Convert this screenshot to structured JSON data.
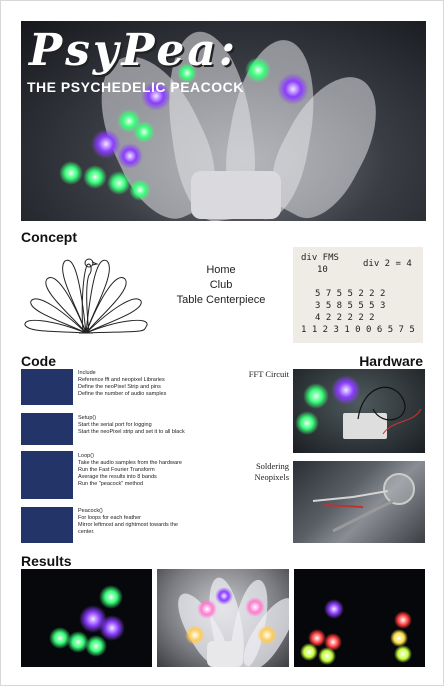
{
  "hero": {
    "title": "PsyPea:",
    "subtitle": "THE PSYCHEDELIC PEACOCK"
  },
  "concept": {
    "heading": "Concept",
    "lines": [
      "Home",
      "Club",
      "Table Centerpiece"
    ],
    "note_lines": [
      "div FMS",
      "10",
      "div 2 = 4",
      "5 7 5 5 2 2 2",
      "3 5 8 5 5 5 3",
      "4 2 2 2 2 2",
      "1 1 2 3 1 0 0 6 5 7 5"
    ]
  },
  "code": {
    "heading": "Code",
    "blocks": [
      {
        "lines": [
          "Include",
          "Reference fft and neopixel Libraries",
          "Define the neoPixel Strip and pins",
          "Define the number of audio samples"
        ]
      },
      {
        "lines": [
          "Setup()",
          "Start the serial port for logging",
          "Start the neoPixel strip and set it to all black"
        ]
      },
      {
        "lines": [
          "Loop()",
          "Take the audio samples from the hardware",
          "Run the Fast Fourier Transform",
          "Average the results into 8 bands",
          "Run the \"peacock\" method"
        ]
      },
      {
        "lines": [
          "Peacock()",
          "For loops for each feather",
          "Mirror leftmost and rightmost towards the",
          "center."
        ]
      }
    ]
  },
  "hardware": {
    "heading": "Hardware",
    "fft_label": "FFT Circuit",
    "solder_label_1": "Soldering",
    "solder_label_2": "Neopixels"
  },
  "results": {
    "heading": "Results"
  },
  "colors": {
    "code_box": "#223468",
    "glow_green": "#37ff7a",
    "glow_purple": "#8a3dff"
  }
}
